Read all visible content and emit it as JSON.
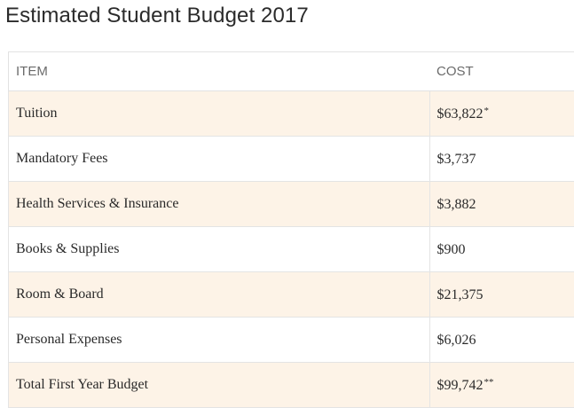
{
  "page": {
    "title": "Estimated Student Budget 2017"
  },
  "table": {
    "headers": {
      "item": "ITEM",
      "cost": "COST"
    },
    "rows": [
      {
        "item": "Tuition",
        "cost": "$63,822",
        "mark": "*",
        "shaded": true
      },
      {
        "item": "Mandatory Fees",
        "cost": "$3,737",
        "mark": "",
        "shaded": false
      },
      {
        "item": "Health Services & Insurance",
        "cost": "$3,882",
        "mark": "",
        "shaded": true
      },
      {
        "item": "Books & Supplies",
        "cost": "$900",
        "mark": "",
        "shaded": false
      },
      {
        "item": "Room & Board",
        "cost": "$21,375",
        "mark": "",
        "shaded": true
      },
      {
        "item": "Personal Expenses",
        "cost": "$6,026",
        "mark": "",
        "shaded": false
      },
      {
        "item": "Total First Year Budget",
        "cost": "$99,742",
        "mark": "**",
        "shaded": true
      }
    ]
  },
  "colors": {
    "shaded_row": "#fdf3e7",
    "border": "#e4e4e4",
    "title_text": "#2b2b2b",
    "header_text": "#6b6b6b"
  }
}
